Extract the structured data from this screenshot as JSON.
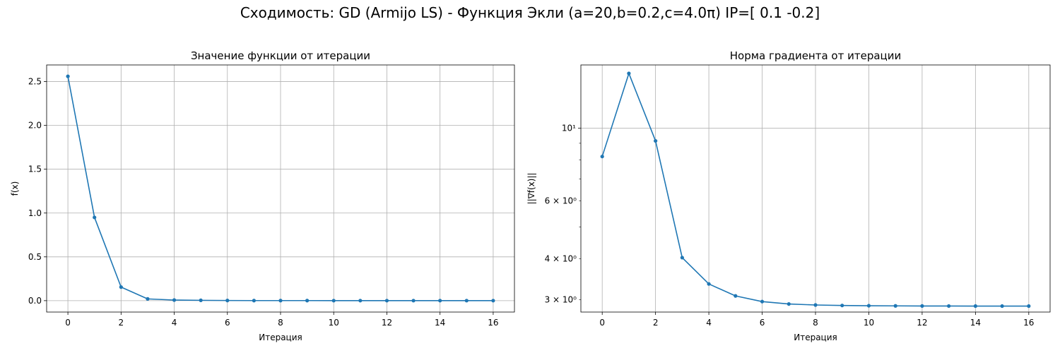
{
  "suptitle": "Сходимость: GD (Armijo LS) - Функция Экли (a=20,b=0.2,c=4.0π) IP=[ 0.1 -0.2]",
  "colors": {
    "series": "#1f77b4",
    "grid": "#b0b0b0",
    "axes": "#000000"
  },
  "chart_data": [
    {
      "type": "line",
      "title": "Значение функции от итерации",
      "xlabel": "Итерация",
      "ylabel": "f(x)",
      "yscale": "linear",
      "xlim": [
        -0.8,
        16.8
      ],
      "ylim": [
        -0.13,
        2.69
      ],
      "xticks": [
        0,
        2,
        4,
        6,
        8,
        10,
        12,
        14,
        16
      ],
      "xtick_labels": [
        "0",
        "2",
        "4",
        "6",
        "8",
        "10",
        "12",
        "14",
        "16"
      ],
      "yticks": [
        0.0,
        0.5,
        1.0,
        1.5,
        2.0,
        2.5
      ],
      "ytick_labels": [
        "0.0",
        "0.5",
        "1.0",
        "1.5",
        "2.0",
        "2.5"
      ],
      "grid": true,
      "series": [
        {
          "name": "f(x)",
          "x": [
            0,
            1,
            2,
            3,
            4,
            5,
            6,
            7,
            8,
            9,
            10,
            11,
            12,
            13,
            14,
            15,
            16
          ],
          "values": [
            2.56,
            0.95,
            0.155,
            0.02,
            0.007,
            0.004,
            0.002,
            0.001,
            0.001,
            0.001,
            0.0005,
            0.0005,
            0.0005,
            0.0005,
            0.0005,
            0.0005,
            0.0005
          ]
        }
      ]
    },
    {
      "type": "line",
      "title": "Норма градиента от итерации",
      "xlabel": "Итерация",
      "ylabel": "||∇f(x)||",
      "yscale": "log",
      "xlim": [
        -0.8,
        16.8
      ],
      "ylim": [
        2.75,
        15.6
      ],
      "xticks": [
        0,
        2,
        4,
        6,
        8,
        10,
        12,
        14,
        16
      ],
      "xtick_labels": [
        "0",
        "2",
        "4",
        "6",
        "8",
        "10",
        "12",
        "14",
        "16"
      ],
      "yticks_major": [
        10
      ],
      "yticks_major_labels": [
        "10¹"
      ],
      "yticks_minor": [
        3,
        4,
        6
      ],
      "yticks_minor_labels": [
        "3 × 10⁰",
        "4 × 10⁰",
        "6 × 10⁰"
      ],
      "yticks_minor_unlabeled": [
        5,
        7,
        8,
        9
      ],
      "grid": true,
      "series": [
        {
          "name": "||∇f(x)||",
          "x": [
            0,
            1,
            2,
            3,
            4,
            5,
            6,
            7,
            8,
            9,
            10,
            11,
            12,
            13,
            14,
            15,
            16
          ],
          "values": [
            8.2,
            14.7,
            9.15,
            4.03,
            3.35,
            3.08,
            2.96,
            2.91,
            2.89,
            2.88,
            2.875,
            2.872,
            2.87,
            2.869,
            2.868,
            2.868,
            2.868
          ]
        }
      ]
    }
  ]
}
